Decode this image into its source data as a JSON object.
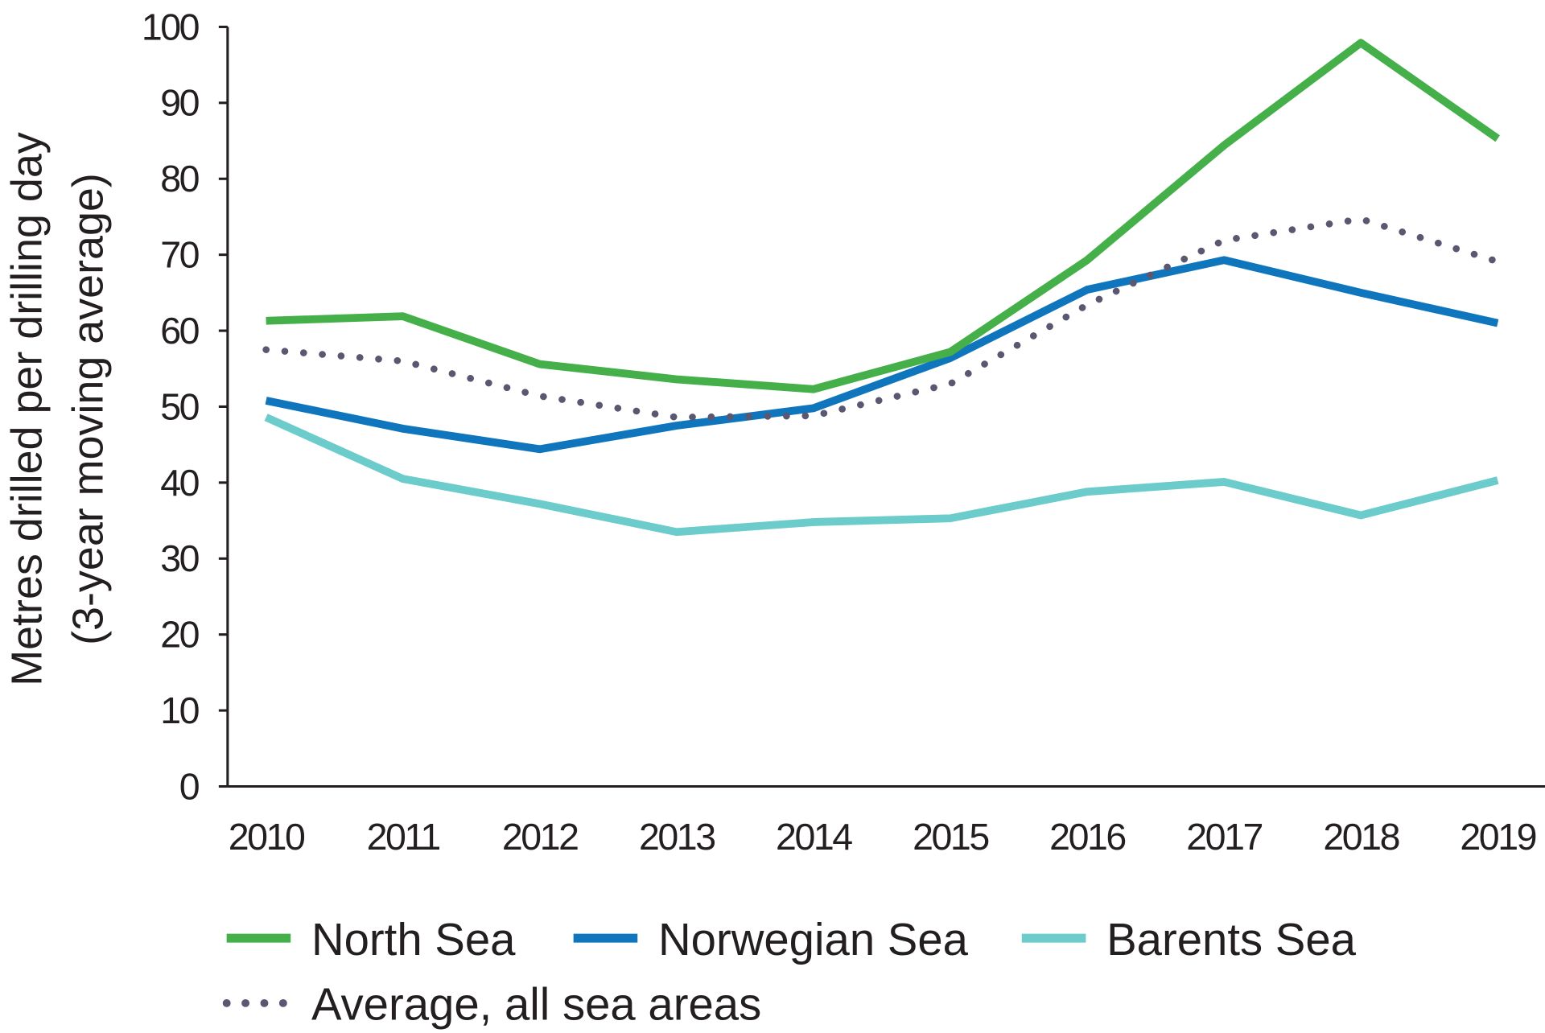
{
  "chart_data": {
    "type": "line",
    "title": "",
    "xlabel": "",
    "ylabel": [
      "Metres drilled per drilling day",
      "(3-year moving average)"
    ],
    "x": [
      "2010",
      "2011",
      "2012",
      "2013",
      "2014",
      "2015",
      "2016",
      "2017",
      "2018",
      "2019"
    ],
    "ylim": [
      0,
      100
    ],
    "yticks": [
      "0",
      "10",
      "20",
      "30",
      "40",
      "50",
      "60",
      "70",
      "80",
      "90",
      "100"
    ],
    "grid": false,
    "legend_position": "bottom",
    "series": [
      {
        "name": "North Sea",
        "color": "#45b049",
        "style": "solid",
        "values": [
          61.3,
          61.9,
          55.6,
          53.6,
          52.3,
          57.2,
          69.3,
          84.4,
          97.9,
          85.3
        ]
      },
      {
        "name": "Norwegian Sea",
        "color": "#0f75bc",
        "style": "solid",
        "values": [
          50.8,
          47.1,
          44.4,
          47.5,
          49.8,
          56.4,
          65.4,
          69.3,
          65.0,
          61.0
        ]
      },
      {
        "name": "Barents Sea",
        "color": "#6ccbcb",
        "style": "solid",
        "values": [
          48.6,
          40.5,
          37.2,
          33.5,
          34.8,
          35.3,
          38.8,
          40.1,
          35.7,
          40.3
        ]
      },
      {
        "name": "Average, all sea areas",
        "color": "#5a5870",
        "style": "dotted",
        "values": [
          57.5,
          56.0,
          51.4,
          48.6,
          48.8,
          53.0,
          63.4,
          71.9,
          74.7,
          69.1
        ]
      }
    ]
  }
}
